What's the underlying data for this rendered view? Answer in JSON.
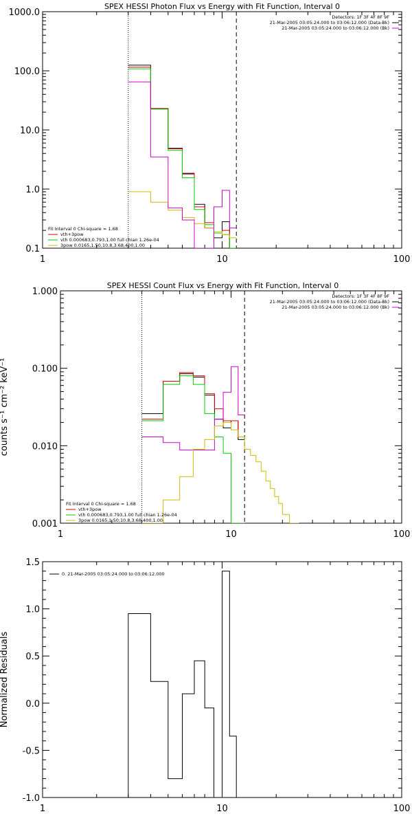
{
  "chart_data": [
    {
      "type": "line",
      "title": "SPEX HESSI Photon Flux vs Energy with Fit Function, Interval 0",
      "ylabel": "",
      "x_scale": "log",
      "y_scale": "log",
      "xlim": [
        1,
        100
      ],
      "ylim": [
        0.1,
        1000
      ],
      "x_ticks": [
        "1",
        "10",
        "100"
      ],
      "y_ticks": [
        "0.1",
        "1.0",
        "10.0",
        "100.0",
        "1000.0"
      ],
      "vlines": [
        {
          "x": 3.0,
          "style": "dotted"
        },
        {
          "x": 12.0,
          "style": "dashed"
        }
      ],
      "info": [
        "Detectors: 1F 3F 4F 8F 9F",
        "21-Mar-2005 03:05:24.000 to 03:06:12.000 (Data-Bk)",
        "21-Mar-2005 03:05:24.000 to 03:06:12.000 (Bk)"
      ],
      "info_colors": [
        "#000000",
        "#000000",
        "#cc00cc"
      ],
      "legend_title": "Fit Interval 0   Chi-square = 1.68",
      "legend": [
        {
          "label": "vth+3pow",
          "color": "#dd0000"
        },
        {
          "label": "vth 0.000683,0.793,1.00  full chian 1.26e-04",
          "color": "#00cc00"
        },
        {
          "label": "3pow 0.0165,1.50,10.8,3.68,400,1.00",
          "color": "#d4b800"
        }
      ],
      "edges": [
        3.0,
        4.0,
        5.0,
        6.0,
        7.0,
        8.0,
        9.0,
        10.0,
        11.0,
        12.0
      ],
      "series": [
        {
          "color": "#000000",
          "values": [
            125,
            23,
            4.9,
            1.8,
            0.55,
            0.22,
            0.15,
            0.28,
            0.1
          ]
        },
        {
          "color": "#dd0000",
          "values": [
            115,
            23,
            4.8,
            1.85,
            0.5,
            0.27,
            0.19,
            0.2,
            0.1
          ]
        },
        {
          "color": "#00cc00",
          "values": [
            108,
            22.5,
            4.5,
            1.55,
            0.45,
            0.25,
            0.18,
            0.17,
            0.1
          ]
        },
        {
          "color": "#d4b800",
          "values": [
            0.9,
            0.6,
            0.44,
            0.33,
            0.26,
            0.22,
            0.19,
            0.17,
            0.15
          ]
        },
        {
          "color": "#cc00cc",
          "values": [
            65,
            3.5,
            0.48,
            0.3,
            0.1,
            0.1,
            0.5,
            0.95,
            0.22
          ]
        }
      ]
    },
    {
      "type": "line",
      "title": "SPEX HESSI Count Flux vs Energy with Fit Function, Interval 0",
      "ylabel": "counts s⁻¹ cm⁻² keV⁻¹",
      "x_scale": "log",
      "y_scale": "log",
      "xlim": [
        1,
        100
      ],
      "ylim": [
        0.001,
        1.0
      ],
      "x_ticks": [
        "1",
        "10",
        "100"
      ],
      "y_ticks": [
        "0.001",
        "0.010",
        "0.100",
        "1.000"
      ],
      "vlines": [
        {
          "x": 3.0,
          "style": "dotted"
        },
        {
          "x": 12.0,
          "style": "dashed"
        }
      ],
      "info": [
        "Detectors: 1F 3F 4F 8F 9F",
        "21-Mar-2005 03:05:24.000 to 03:06:12.000 (Data-Bk)",
        "21-Mar-2005 03:05:24.000 to 03:06:12.000 (Bk)"
      ],
      "info_colors": [
        "#000000",
        "#000000",
        "#cc00cc"
      ],
      "legend_title": "Fit Interval 0   Chi-square = 1.68",
      "legend": [
        {
          "label": "vth+3pow",
          "color": "#dd0000"
        },
        {
          "label": "vth 0.000683,0.793,1.00  full chian 1.26e-04",
          "color": "#00cc00"
        },
        {
          "label": "3pow 0.0165,1.50,10.8,3.68,400,1.00",
          "color": "#d4b800"
        }
      ],
      "edges": [
        3.0,
        4.0,
        5.0,
        6.0,
        7.0,
        8.0,
        9.0,
        10.0,
        11.0,
        12.0
      ],
      "series": [
        {
          "color": "#000000",
          "values": [
            0.026,
            0.068,
            0.085,
            0.077,
            0.045,
            0.022,
            0.017,
            0.021,
            0.012
          ]
        },
        {
          "color": "#dd0000",
          "values": [
            0.022,
            0.068,
            0.088,
            0.08,
            0.047,
            0.03,
            0.021,
            0.021,
            0.013
          ]
        },
        {
          "color": "#00cc00",
          "values": [
            0.021,
            0.062,
            0.08,
            0.062,
            0.026,
            0.013,
            0.008,
            0.001,
            0.001
          ]
        },
        {
          "color": "#cc00cc",
          "values": [
            0.013,
            0.011,
            0.0088,
            0.0088,
            0.0088,
            0.022,
            0.049,
            0.105,
            0.025
          ]
        }
      ],
      "tail_series": {
        "color": "#d4b800",
        "edges": [
          3.0,
          4.0,
          5.0,
          6.0,
          7.0,
          8.0,
          9.0,
          10.0,
          11.0,
          12.0,
          13.0,
          14.0,
          15.0,
          16.0,
          17.0,
          18.0,
          19.0,
          20.0,
          22.0,
          25.0
        ],
        "values": [
          0.001,
          0.002,
          0.004,
          0.009,
          0.012,
          0.018,
          0.02,
          0.016,
          0.013,
          0.009,
          0.0075,
          0.0062,
          0.0047,
          0.0035,
          0.0028,
          0.0022,
          0.0018,
          0.0013,
          0.001
        ]
      }
    },
    {
      "type": "line",
      "title": "",
      "ylabel": "Normalized Residuals",
      "x_scale": "log",
      "y_scale": "linear",
      "xlim": [
        1,
        100
      ],
      "ylim": [
        -1.0,
        1.5
      ],
      "x_ticks": [
        "1",
        "10",
        "100"
      ],
      "y_ticks": [
        "-1.0",
        "-0.5",
        "0.0",
        "0.5",
        "1.0",
        "1.5"
      ],
      "legend": [
        {
          "label": "0. 21-Mar-2005 03:05:24.000 to 03:06:12.000",
          "color": "#000000"
        }
      ],
      "edges": [
        3.0,
        4.0,
        5.0,
        6.0,
        7.0,
        8.0,
        9.0,
        10.0,
        11.0,
        12.0
      ],
      "values": [
        0.95,
        0.23,
        -0.8,
        0.1,
        0.45,
        -0.05,
        -1.0,
        1.4,
        -0.35
      ]
    }
  ]
}
